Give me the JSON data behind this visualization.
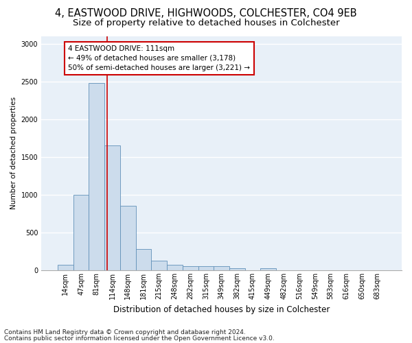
{
  "title1": "4, EASTWOOD DRIVE, HIGHWOODS, COLCHESTER, CO4 9EB",
  "title2": "Size of property relative to detached houses in Colchester",
  "xlabel": "Distribution of detached houses by size in Colchester",
  "ylabel": "Number of detached properties",
  "categories": [
    "14sqm",
    "47sqm",
    "81sqm",
    "114sqm",
    "148sqm",
    "181sqm",
    "215sqm",
    "248sqm",
    "282sqm",
    "315sqm",
    "349sqm",
    "382sqm",
    "415sqm",
    "449sqm",
    "482sqm",
    "516sqm",
    "549sqm",
    "583sqm",
    "616sqm",
    "650sqm",
    "683sqm"
  ],
  "values": [
    75,
    1000,
    2480,
    1650,
    850,
    280,
    130,
    75,
    55,
    55,
    55,
    30,
    0,
    30,
    0,
    0,
    0,
    0,
    0,
    0,
    0
  ],
  "bar_color": "#ccdcec",
  "bar_edge_color": "#6090b8",
  "background_color": "#e8f0f8",
  "grid_color": "#ffffff",
  "annotation_text_line1": "4 EASTWOOD DRIVE: 111sqm",
  "annotation_text_line2": "← 49% of detached houses are smaller (3,178)",
  "annotation_text_line3": "50% of semi-detached houses are larger (3,221) →",
  "annotation_box_facecolor": "#ffffff",
  "annotation_box_edgecolor": "#cc0000",
  "red_line_color": "#cc0000",
  "footnote1": "Contains HM Land Registry data © Crown copyright and database right 2024.",
  "footnote2": "Contains public sector information licensed under the Open Government Licence v3.0.",
  "ylim": [
    0,
    3100
  ],
  "yticks": [
    0,
    500,
    1000,
    1500,
    2000,
    2500,
    3000
  ],
  "title1_fontsize": 10.5,
  "title2_fontsize": 9.5,
  "xlabel_fontsize": 8.5,
  "ylabel_fontsize": 7.5,
  "tick_fontsize": 7,
  "annotation_fontsize": 7.5,
  "footnote_fontsize": 6.5,
  "red_line_x": 2.67
}
